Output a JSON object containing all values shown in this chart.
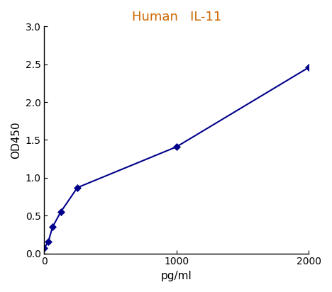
{
  "x": [
    0,
    31.25,
    62.5,
    125,
    250,
    1000,
    2000
  ],
  "y": [
    0.07,
    0.16,
    0.35,
    0.55,
    0.87,
    1.41,
    2.46
  ],
  "title": "Human   IL-11",
  "title_color": "#cc6600",
  "xlabel": "pg/ml",
  "ylabel": "OD450",
  "xlim": [
    0,
    2000
  ],
  "ylim": [
    0,
    3
  ],
  "yticks": [
    0,
    0.5,
    1,
    1.5,
    2,
    2.5,
    3
  ],
  "xticks": [
    0,
    1000,
    2000
  ],
  "xtick_labels": [
    "0",
    "1000",
    "2000"
  ],
  "line_color": "#00008B",
  "marker_color": "#00008B",
  "marker": "D",
  "marker_size": 5,
  "line_width": 1.5,
  "bg_color": "#ffffff",
  "title_fontsize": 13,
  "label_fontsize": 11
}
